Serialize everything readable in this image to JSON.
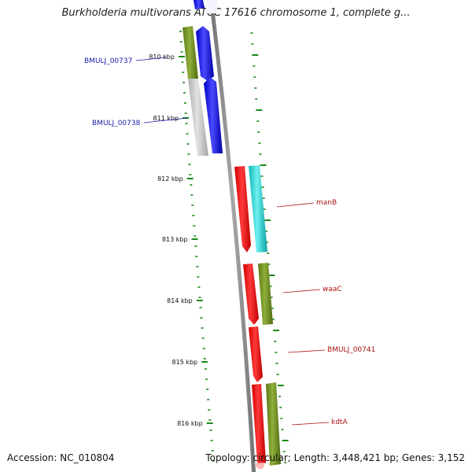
{
  "title": "Burkholderia multivorans ATCC 17616 chromosome 1, complete g...",
  "footer": {
    "accession": "Accession: NC_010804",
    "summary": "Topology: circular; Length: 3,448,421 bp; Genes: 3,152"
  },
  "colors": {
    "backbone": "#8a8a8a",
    "tick": "#1a8a1a",
    "blue_label": "#1a1aaa",
    "red_label": "#aa1111",
    "olive": "#6f8f22",
    "blue": "#1a1add",
    "red": "#ee1111",
    "cyan": "#22cccc",
    "gray": "#c4c4c4"
  },
  "position_labels": [
    "810 kbp",
    "811 kbp",
    "812 kbp",
    "813 kbp",
    "814 kbp",
    "815 kbp",
    "816 kbp"
  ],
  "gene_labels": [
    {
      "name": "BMULJ_00737",
      "color": "blue"
    },
    {
      "name": "BMULJ_00738",
      "color": "blue"
    },
    {
      "name": "manB",
      "color": "red"
    },
    {
      "name": "waaC",
      "color": "red"
    },
    {
      "name": "BMULJ_00741",
      "color": "red"
    },
    {
      "name": "kdtA",
      "color": "red"
    }
  ]
}
